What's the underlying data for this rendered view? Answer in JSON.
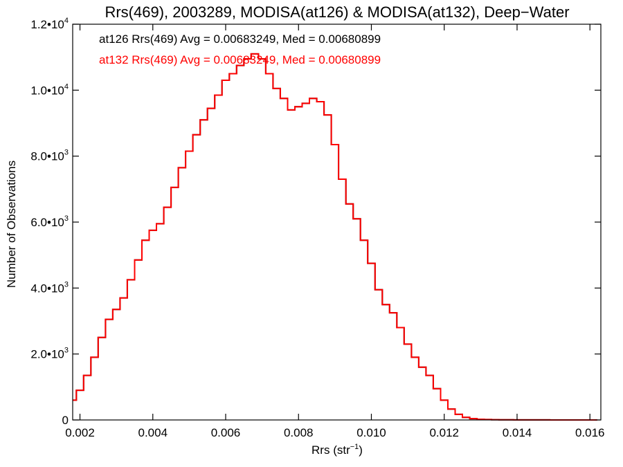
{
  "chart_data": {
    "type": "histogram",
    "title": "Rrs(469), 2003289, MODISA(at126) & MODISA(at132), Deep−Water",
    "xlabel": "Rrs (str",
    "xlabel_exp": "−1",
    "xlabel_close": ")",
    "ylabel": "Number of Observations",
    "xlim": [
      0.0018,
      0.0163
    ],
    "ylim": [
      0,
      12000
    ],
    "x_ticks": [
      {
        "value": 0.002,
        "label": "0.002"
      },
      {
        "value": 0.004,
        "label": "0.004"
      },
      {
        "value": 0.006,
        "label": "0.006"
      },
      {
        "value": 0.008,
        "label": "0.008"
      },
      {
        "value": 0.01,
        "label": "0.010"
      },
      {
        "value": 0.012,
        "label": "0.012"
      },
      {
        "value": 0.014,
        "label": "0.014"
      },
      {
        "value": 0.016,
        "label": "0.016"
      }
    ],
    "y_ticks": [
      {
        "value": 0,
        "mant": "0",
        "exp": ""
      },
      {
        "value": 2000,
        "mant": "2.0•10",
        "exp": "3"
      },
      {
        "value": 4000,
        "mant": "4.0•10",
        "exp": "3"
      },
      {
        "value": 6000,
        "mant": "6.0•10",
        "exp": "3"
      },
      {
        "value": 8000,
        "mant": "8.0•10",
        "exp": "3"
      },
      {
        "value": 10000,
        "mant": "1.0•10",
        "exp": "4"
      },
      {
        "value": 12000,
        "mant": "1.2•10",
        "exp": "4"
      }
    ],
    "annotations": [
      {
        "text": "at126 Rrs(469) Avg = 0.00683249, Med = 0.00680899",
        "color": "#000000"
      },
      {
        "text": "at132 Rrs(469) Avg = 0.00683249, Med = 0.00680899",
        "color": "#ff0000"
      }
    ],
    "series": [
      {
        "color": "#000000",
        "x": [
          0.0018,
          0.002,
          0.0022,
          0.0024,
          0.0026,
          0.0028,
          0.003,
          0.0032,
          0.0034,
          0.0036,
          0.0038,
          0.004,
          0.0042,
          0.0044,
          0.0046,
          0.0048,
          0.005,
          0.0052,
          0.0054,
          0.0056,
          0.0058,
          0.006,
          0.0062,
          0.0064,
          0.0066,
          0.0068,
          0.007,
          0.0072,
          0.0074,
          0.0076,
          0.0078,
          0.008,
          0.0082,
          0.0084,
          0.0086,
          0.0088,
          0.009,
          0.0092,
          0.0094,
          0.0096,
          0.0098,
          0.01,
          0.0102,
          0.0104,
          0.0106,
          0.0108,
          0.011,
          0.0112,
          0.0114,
          0.0116,
          0.0118,
          0.012,
          0.0122,
          0.0124,
          0.0126,
          0.0128,
          0.013,
          0.0132,
          0.0134,
          0.0136,
          0.0138,
          0.014,
          0.0142,
          0.0144,
          0.0146,
          0.0148,
          0.015,
          0.0152,
          0.0154,
          0.0156,
          0.0158,
          0.016,
          0.0162
        ],
        "y": [
          600,
          900,
          1350,
          1900,
          2500,
          3050,
          3350,
          3700,
          4250,
          4850,
          5450,
          5750,
          5950,
          6450,
          7050,
          7650,
          8150,
          8650,
          9100,
          9450,
          9850,
          10300,
          10500,
          10750,
          10950,
          11100,
          10950,
          10500,
          10050,
          9750,
          9400,
          9500,
          9600,
          9750,
          9650,
          9250,
          8350,
          7300,
          6550,
          6100,
          5450,
          4750,
          3950,
          3500,
          3250,
          2800,
          2300,
          1900,
          1600,
          1350,
          950,
          600,
          330,
          170,
          80,
          40,
          22,
          12,
          8,
          5,
          4,
          3,
          3,
          2,
          2,
          2,
          1,
          1,
          1,
          1,
          1,
          1,
          1
        ]
      },
      {
        "color": "#ff0000",
        "x": [
          0.0018,
          0.002,
          0.0022,
          0.0024,
          0.0026,
          0.0028,
          0.003,
          0.0032,
          0.0034,
          0.0036,
          0.0038,
          0.004,
          0.0042,
          0.0044,
          0.0046,
          0.0048,
          0.005,
          0.0052,
          0.0054,
          0.0056,
          0.0058,
          0.006,
          0.0062,
          0.0064,
          0.0066,
          0.0068,
          0.007,
          0.0072,
          0.0074,
          0.0076,
          0.0078,
          0.008,
          0.0082,
          0.0084,
          0.0086,
          0.0088,
          0.009,
          0.0092,
          0.0094,
          0.0096,
          0.0098,
          0.01,
          0.0102,
          0.0104,
          0.0106,
          0.0108,
          0.011,
          0.0112,
          0.0114,
          0.0116,
          0.0118,
          0.012,
          0.0122,
          0.0124,
          0.0126,
          0.0128,
          0.013,
          0.0132,
          0.0134,
          0.0136,
          0.0138,
          0.014,
          0.0142,
          0.0144,
          0.0146,
          0.0148,
          0.015,
          0.0152,
          0.0154,
          0.0156,
          0.0158,
          0.016,
          0.0162
        ],
        "y": [
          600,
          900,
          1350,
          1900,
          2500,
          3050,
          3350,
          3700,
          4250,
          4850,
          5450,
          5750,
          5950,
          6450,
          7050,
          7650,
          8150,
          8650,
          9100,
          9450,
          9850,
          10300,
          10500,
          10750,
          10950,
          11100,
          10950,
          10500,
          10050,
          9750,
          9400,
          9500,
          9600,
          9750,
          9650,
          9250,
          8350,
          7300,
          6550,
          6100,
          5450,
          4750,
          3950,
          3500,
          3250,
          2800,
          2300,
          1900,
          1600,
          1350,
          950,
          600,
          330,
          170,
          80,
          40,
          22,
          12,
          8,
          5,
          4,
          3,
          3,
          2,
          2,
          2,
          1,
          1,
          1,
          1,
          1,
          1,
          1
        ]
      }
    ]
  }
}
